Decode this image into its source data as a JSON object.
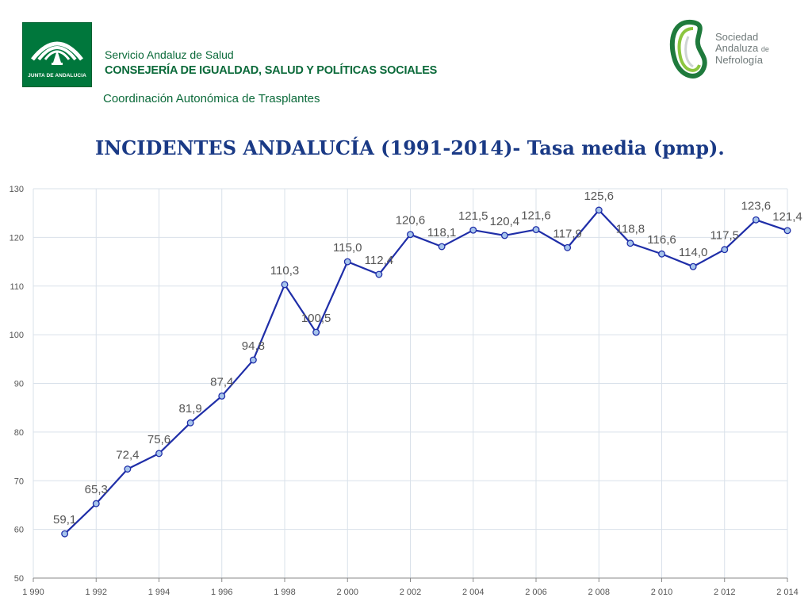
{
  "header": {
    "junta_logo_text": "JUNTA DE ANDALUCIA",
    "service": "Servicio Andaluz de Salud",
    "consejeria": "CONSEJERÍA DE IGUALDAD, SALUD Y POLÍTICAS SOCIALES",
    "coordinacion": "Coordinación Autonómica de Trasplantes",
    "society_line1": "Sociedad",
    "society_line2": "Andaluza",
    "society_de": "de",
    "society_line3": "Nefrología"
  },
  "colors": {
    "line": "#1f2ea8",
    "marker_fill": "#a6c4ec",
    "grid": "#d9e1ea",
    "title": "#1a3a86",
    "brand_green": "#00773c"
  },
  "chart_data": {
    "type": "scatter",
    "title": "INCIDENTES ANDALUCÍA (1991-2014)- Tasa media (pmp).",
    "xlabel": "",
    "ylabel": "",
    "xlim": [
      1990,
      2014
    ],
    "ylim": [
      50,
      130
    ],
    "x_ticks": [
      1990,
      1992,
      1994,
      1996,
      1998,
      2000,
      2002,
      2004,
      2006,
      2008,
      2010,
      2012,
      2014
    ],
    "x_tick_labels": [
      "1 990",
      "1 992",
      "1 994",
      "1 996",
      "1 998",
      "2 000",
      "2 002",
      "2 004",
      "2 006",
      "2 008",
      "2 010",
      "2 012",
      "2 014"
    ],
    "y_ticks": [
      50,
      60,
      70,
      80,
      90,
      100,
      110,
      120,
      130
    ],
    "grid": true,
    "series": [
      {
        "x": [
          1991,
          1992,
          1993,
          1994,
          1995,
          1996,
          1997,
          1998,
          1999,
          2000,
          2001,
          2002,
          2003,
          2004,
          2005,
          2006,
          2007,
          2008,
          2009,
          2010,
          2011,
          2012,
          2013,
          2014
        ],
        "values": [
          59.1,
          65.3,
          72.4,
          75.6,
          81.9,
          87.4,
          94.8,
          110.3,
          100.5,
          115.0,
          112.4,
          120.6,
          118.1,
          121.5,
          120.4,
          121.6,
          117.9,
          125.6,
          118.8,
          116.6,
          114.0,
          117.5,
          123.6,
          121.4
        ],
        "labels": [
          "59,1",
          "65,3",
          "72,4",
          "75,6",
          "81,9",
          "87,4",
          "94,8",
          "110,3",
          "100,5",
          "115,0",
          "112,4",
          "120,6",
          "118,1",
          "121,5",
          "120,4",
          "121,6",
          "117,9",
          "125,6",
          "118,8",
          "116,6",
          "114,0",
          "117,5",
          "123,6",
          "121,4"
        ]
      }
    ]
  }
}
